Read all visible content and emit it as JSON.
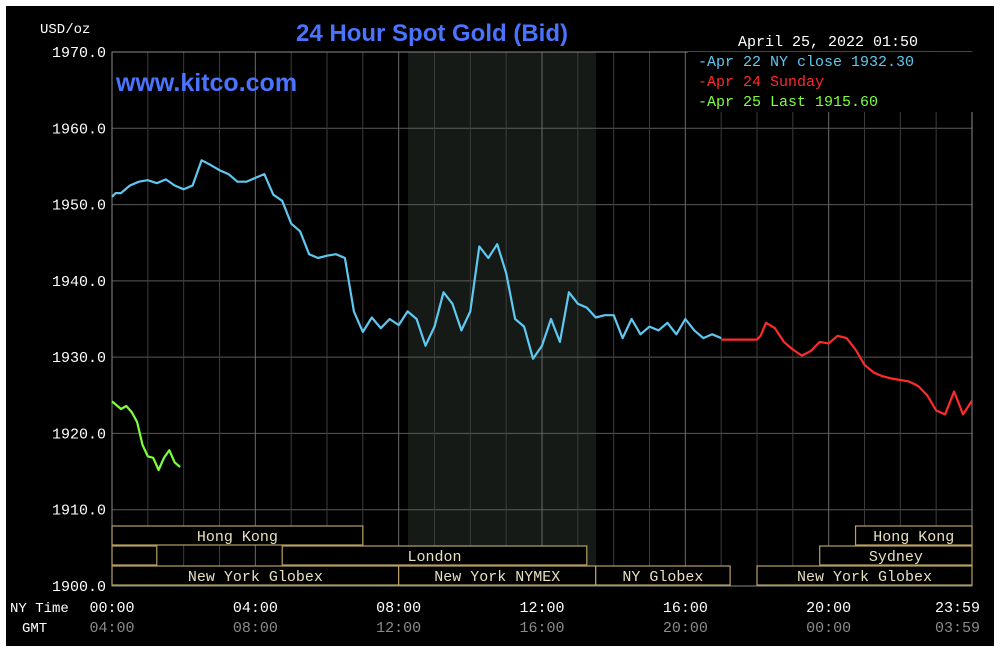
{
  "chart_data": {
    "type": "line",
    "title": "24 Hour Spot Gold (Bid)",
    "watermark": "www.kitco.com",
    "units_label": "USD/oz",
    "timestamp": "April 25, 2022 01:50",
    "ylim": [
      1900,
      1970
    ],
    "y_ticks": [
      "1970.0",
      "1960.0",
      "1950.0",
      "1940.0",
      "1930.0",
      "1920.0",
      "1910.0",
      "1900.0"
    ],
    "x_ticks_ny": [
      "00:00",
      "04:00",
      "08:00",
      "12:00",
      "16:00",
      "20:00",
      "23:59"
    ],
    "x_ticks_gmt": [
      "04:00",
      "08:00",
      "12:00",
      "16:00",
      "20:00",
      "00:00",
      "03:59"
    ],
    "ny_time_label": "NY Time",
    "gmt_label": "GMT",
    "grid": true,
    "legend_placement": "top-right",
    "legend": [
      {
        "text": "Apr 22 NY close 1932.30",
        "color": "#5ec8f0"
      },
      {
        "text": "Apr 24 Sunday",
        "color": "#ff2a2a"
      },
      {
        "text": "Apr 25 Last 1915.60",
        "color": "#7cff3c"
      }
    ],
    "markets": {
      "hong_kong_1": "Hong Kong",
      "london": "London",
      "ny_globex_1": "New York Globex",
      "ny_nymex": "New York NYMEX",
      "ny_globex_2": "NY Globex",
      "hong_kong_2": "Hong Kong",
      "sydney": "Sydney",
      "ny_globex_3": "New York Globex"
    },
    "series": [
      {
        "name": "Apr 22 NY close 1932.30",
        "color": "#5ec8f0",
        "x": [
          0.0,
          0.1,
          0.25,
          0.5,
          0.75,
          1.0,
          1.25,
          1.5,
          1.75,
          2.0,
          2.25,
          2.5,
          2.75,
          3.0,
          3.25,
          3.5,
          3.75,
          4.0,
          4.25,
          4.5,
          4.75,
          5.0,
          5.25,
          5.5,
          5.75,
          6.0,
          6.25,
          6.5,
          6.75,
          7.0,
          7.25,
          7.5,
          7.75,
          8.0,
          8.25,
          8.5,
          8.75,
          9.0,
          9.25,
          9.5,
          9.75,
          10.0,
          10.25,
          10.5,
          10.75,
          11.0,
          11.25,
          11.5,
          11.75,
          12.0,
          12.25,
          12.5,
          12.75,
          13.0,
          13.25,
          13.5,
          13.75,
          14.0,
          14.25,
          14.5,
          14.75,
          15.0,
          15.25,
          15.5,
          15.75,
          16.0,
          16.25,
          16.5,
          16.75,
          17.0
        ],
        "values": [
          1951,
          1951.5,
          1951.5,
          1952.5,
          1953,
          1953.2,
          1952.8,
          1953.3,
          1952.5,
          1952,
          1952.5,
          1955.8,
          1955.2,
          1954.5,
          1954,
          1953,
          1953,
          1953.5,
          1954,
          1951.3,
          1950.5,
          1947.5,
          1946.5,
          1943.5,
          1943,
          1943.3,
          1943.5,
          1943,
          1936,
          1933.3,
          1935.2,
          1933.8,
          1935,
          1934.2,
          1936,
          1935,
          1931.5,
          1934,
          1938.5,
          1937,
          1933.5,
          1936,
          1944.5,
          1943,
          1944.8,
          1941,
          1935,
          1934,
          1929.8,
          1931.5,
          1935,
          1932,
          1938.5,
          1937,
          1936.5,
          1935.2,
          1935.5,
          1935.5,
          1932.5,
          1935,
          1933,
          1934,
          1933.5,
          1934.5,
          1933,
          1935,
          1933.5,
          1932.5,
          1933,
          1932.5
        ]
      },
      {
        "name": "Apr 24 Sunday",
        "color": "#ff2a2a",
        "x": [
          17.0,
          18.0,
          18.1,
          18.25,
          18.5,
          18.75,
          19.0,
          19.25,
          19.5,
          19.75,
          20.0,
          20.25,
          20.5,
          20.75,
          21.0,
          21.25,
          21.5,
          21.75,
          22.0,
          22.25,
          22.5,
          22.75,
          23.0,
          23.25,
          23.5,
          23.75,
          24.0
        ],
        "values": [
          1932.3,
          1932.3,
          1932.8,
          1934.5,
          1933.8,
          1932,
          1931,
          1930.2,
          1930.8,
          1932,
          1931.8,
          1932.8,
          1932.5,
          1931,
          1929,
          1928,
          1927.5,
          1927.2,
          1927,
          1926.8,
          1926.2,
          1925,
          1923,
          1922.5,
          1925.5,
          1922.5,
          1924.3
        ]
      },
      {
        "name": "Apr 25 Last 1915.60",
        "color": "#7cff3c",
        "x": [
          0.0,
          0.1,
          0.25,
          0.4,
          0.55,
          0.7,
          0.85,
          1.0,
          1.15,
          1.3,
          1.45,
          1.6,
          1.75,
          1.9
        ],
        "values": [
          1924.2,
          1923.8,
          1923.2,
          1923.6,
          1922.8,
          1921.5,
          1918.5,
          1917,
          1916.8,
          1915.2,
          1916.8,
          1917.8,
          1916.2,
          1915.6
        ]
      }
    ]
  }
}
